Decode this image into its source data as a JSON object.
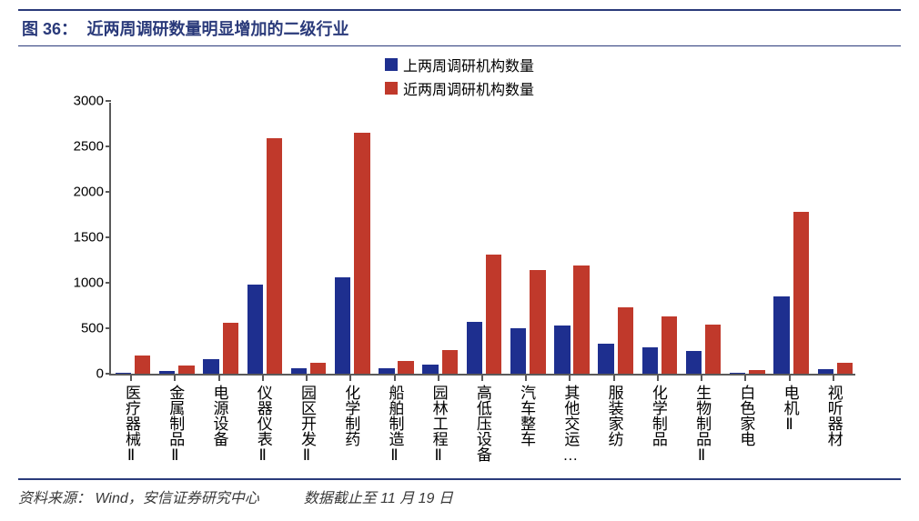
{
  "header": {
    "fig_no": "图 36：",
    "fig_title": "近两周调研数量明显增加的二级行业"
  },
  "chart": {
    "type": "bar",
    "background_color": "#ffffff",
    "axis_color": "#5a5a5a",
    "label_fontsize": 15,
    "xlabel_fontsize": 17,
    "ylim": [
      0,
      3000
    ],
    "ytick_step": 500,
    "yticks": [
      0,
      500,
      1000,
      1500,
      2000,
      2500,
      3000
    ],
    "bar_width": 0.36,
    "group_gap": 0.08,
    "series": [
      {
        "name": "上两周调研机构数量",
        "color": "#1e2f8f"
      },
      {
        "name": "近两周调研机构数量",
        "color": "#c0392b"
      }
    ],
    "categories": [
      "医疗器械Ⅱ",
      "金属制品Ⅱ",
      "电源设备",
      "仪器仪表Ⅱ",
      "园区开发Ⅱ",
      "化学制药",
      "船舶制造Ⅱ",
      "园林工程Ⅱ",
      "高低压设备",
      "汽车整车",
      "其他交运…",
      "服装家纺",
      "化学制品",
      "生物制品Ⅱ",
      "白色家电",
      "电机Ⅱ",
      "视听器材"
    ],
    "values_series0": [
      10,
      35,
      160,
      980,
      60,
      1060,
      60,
      100,
      570,
      500,
      530,
      330,
      290,
      250,
      15,
      850,
      50
    ],
    "values_series1": [
      200,
      90,
      560,
      2590,
      120,
      2650,
      140,
      260,
      1310,
      1140,
      1190,
      730,
      630,
      540,
      40,
      1780,
      120
    ]
  },
  "footer": {
    "source_label": "资料来源：",
    "source_value": "Wind，安信证券研究中心",
    "note": "数据截止至 11 月 19 日"
  }
}
